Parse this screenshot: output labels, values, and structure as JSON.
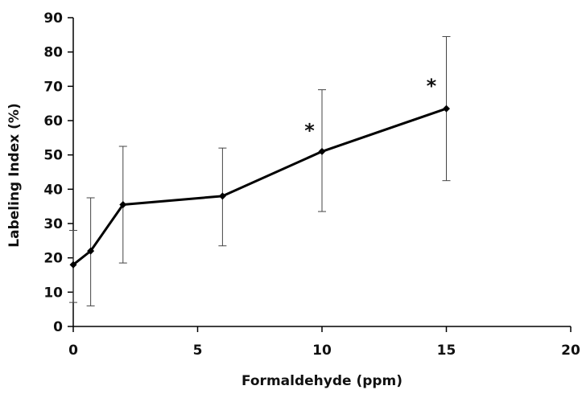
{
  "chart_data": {
    "type": "line",
    "title": "",
    "xlabel": "Formaldehyde (ppm)",
    "ylabel": "Labeling Index (%)",
    "xlim": [
      0,
      20
    ],
    "ylim": [
      0,
      90
    ],
    "x_ticks": [
      0,
      5,
      10,
      15,
      20
    ],
    "y_ticks": [
      0,
      10,
      20,
      30,
      40,
      50,
      60,
      70,
      80,
      90
    ],
    "grid": false,
    "legend": "none",
    "series": [
      {
        "line_color": "#000000",
        "points": [
          {
            "x": 0.0,
            "y": 18.0,
            "err_low": 7.0,
            "err_high": 28.0
          },
          {
            "x": 0.7,
            "y": 22.0,
            "err_low": 6.0,
            "err_high": 37.5
          },
          {
            "x": 2.0,
            "y": 35.5,
            "err_low": 18.5,
            "err_high": 52.5
          },
          {
            "x": 6.0,
            "y": 38.0,
            "err_low": 23.5,
            "err_high": 52.0
          },
          {
            "x": 10.0,
            "y": 51.0,
            "err_low": 33.5,
            "err_high": 69.0
          },
          {
            "x": 15.0,
            "y": 63.5,
            "err_low": 42.5,
            "err_high": 84.5
          }
        ]
      }
    ],
    "annotations": [
      {
        "text": "*",
        "x": 9.5,
        "y": 57.5
      },
      {
        "text": "*",
        "x": 14.4,
        "y": 70.5
      }
    ]
  }
}
